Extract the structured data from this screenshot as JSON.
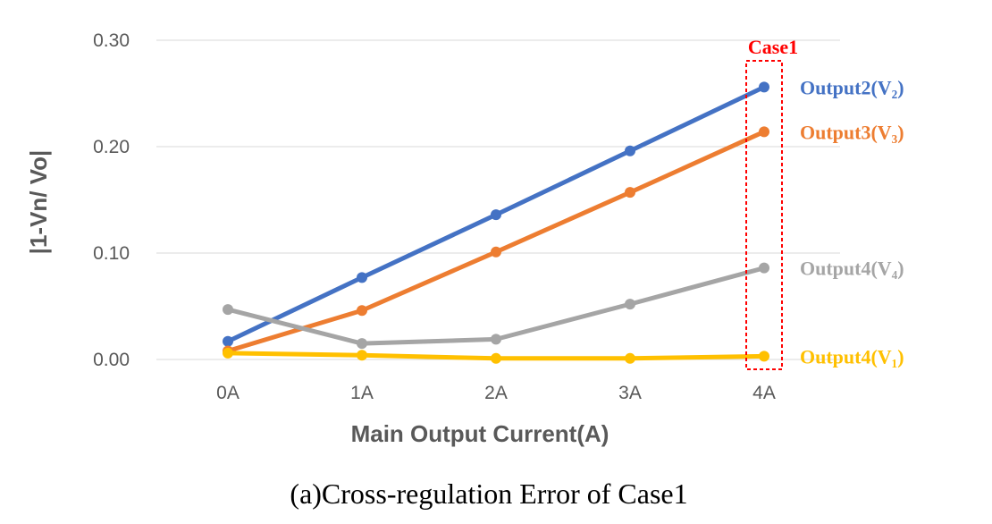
{
  "chart_data": {
    "type": "line",
    "categories": [
      "0A",
      "1A",
      "2A",
      "3A",
      "4A"
    ],
    "xlabel": "Main Output Current(A)",
    "ylabel": "|1-Vn/ Vo|",
    "ylim": [
      0,
      0.3
    ],
    "yticks": [
      "0.00",
      "0.10",
      "0.20",
      "0.30"
    ],
    "grid": true,
    "series": [
      {
        "name": "Output2(V₂)",
        "color": "#4472C4",
        "values": [
          0.017,
          0.077,
          0.136,
          0.196,
          0.256
        ]
      },
      {
        "name": "Output3(V₃)",
        "color": "#ED7D31",
        "values": [
          0.008,
          0.046,
          0.101,
          0.157,
          0.214
        ]
      },
      {
        "name": "Output4(V₄)",
        "color": "#A5A5A5",
        "values": [
          0.047,
          0.015,
          0.019,
          0.052,
          0.086
        ]
      },
      {
        "name": "Output4(V₁)",
        "color": "#FFC000",
        "values": [
          0.006,
          0.004,
          0.001,
          0.001,
          0.003
        ]
      }
    ],
    "annotation": {
      "label": "Case1",
      "category": "4A",
      "color": "#FF0000"
    }
  },
  "caption": "(a)Cross-regulation  Error  of  Case1"
}
